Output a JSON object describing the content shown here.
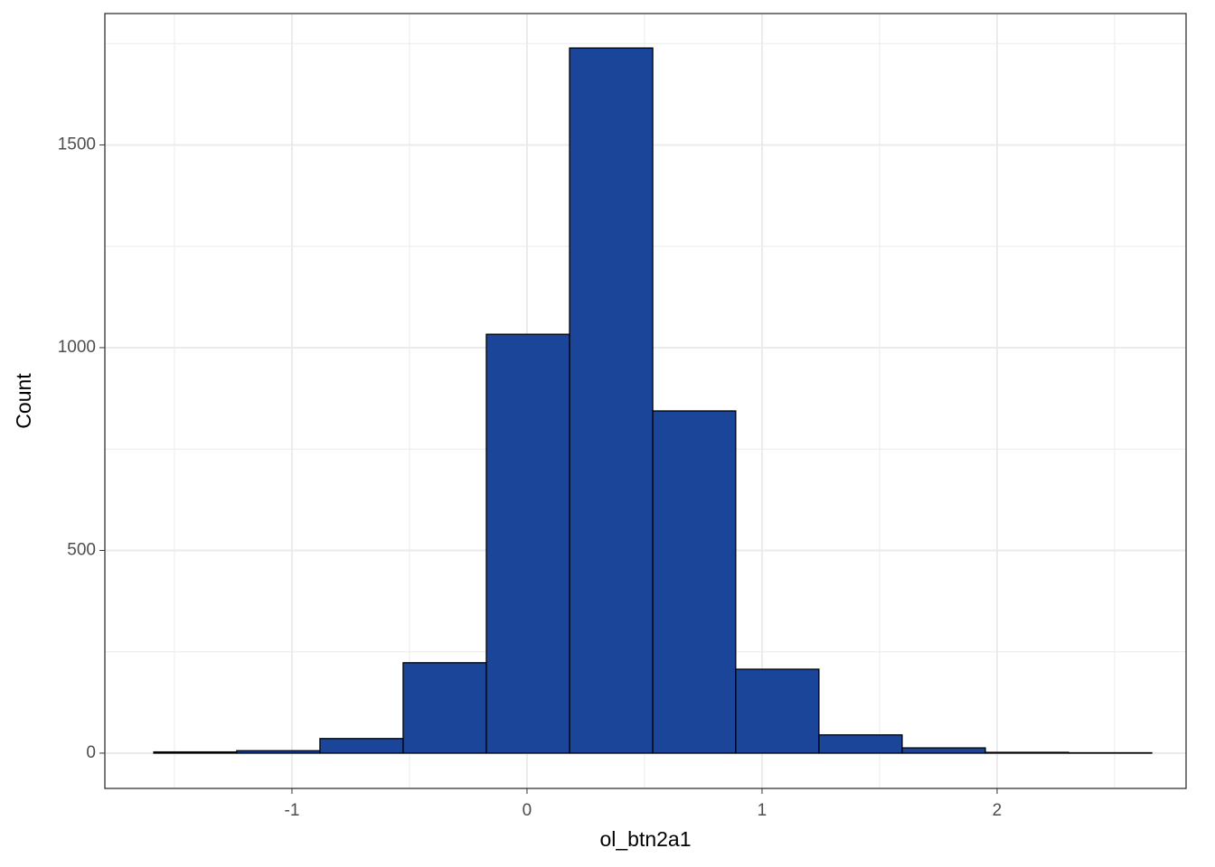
{
  "chart_data": {
    "type": "histogram",
    "x_label": "ol_btn2a1",
    "y_label": "Count",
    "bins": [
      -1.588,
      -1.235,
      -0.881,
      -0.527,
      -0.173,
      0.181,
      0.535,
      0.888,
      1.242,
      1.596,
      1.95,
      2.304,
      2.658
    ],
    "values": [
      3,
      6,
      36,
      223,
      1033,
      1739,
      844,
      207,
      45,
      13,
      2,
      1
    ],
    "color": "#1a4599",
    "xlim": [
      -1.796,
      2.804
    ],
    "ylim": [
      -87,
      1824
    ],
    "xticks": [
      -1,
      0,
      1,
      2
    ],
    "yticks": [
      0,
      500,
      1000,
      1500
    ],
    "x_minor_grid": [
      -1.5,
      -0.5,
      0.5,
      1.5,
      2.5
    ],
    "y_minor_grid": [
      250,
      750,
      1250,
      1750
    ],
    "grid": true
  }
}
